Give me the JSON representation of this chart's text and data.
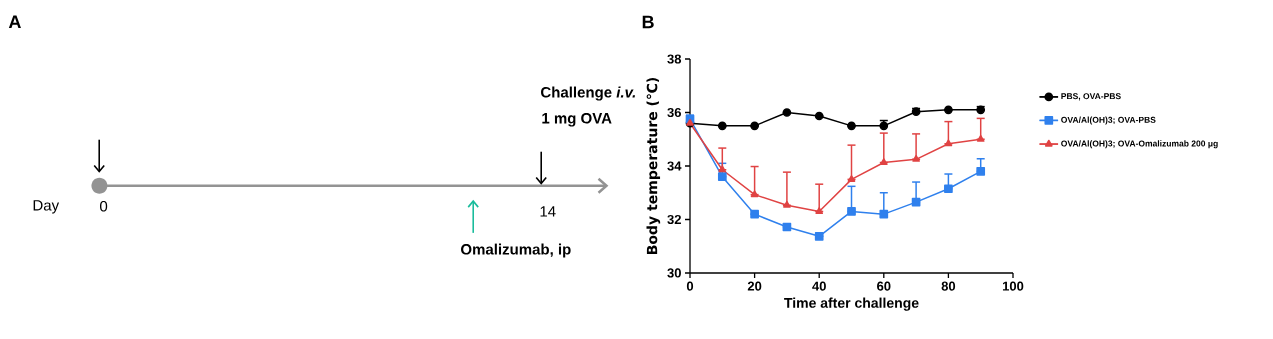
{
  "chart_data": [
    {
      "type": "other",
      "title": "A",
      "annotations": [
        "Day",
        "0",
        "14",
        "Challenge *i.v.*",
        "1 mg OVA",
        "Omalizumab, ip"
      ]
    },
    {
      "type": "line",
      "title": "B",
      "xlabel": "Time after challenge",
      "ylabel": "Body temperature (℃)",
      "x": [
        0,
        10,
        20,
        30,
        40,
        50,
        60,
        70,
        80,
        90
      ],
      "xlim": [
        0,
        100
      ],
      "xticks": [
        0,
        20,
        40,
        60,
        80,
        100
      ],
      "ylim": [
        30,
        38
      ],
      "yticks": [
        30,
        32,
        34,
        36,
        38
      ],
      "legend": "right",
      "grid": false,
      "series": [
        {
          "name": "PBS, OVA-PBS",
          "color": "#000000",
          "marker": "circle",
          "values": [
            35.6,
            35.5,
            35.5,
            36.0,
            35.87,
            35.5,
            35.5,
            36.03,
            36.1,
            36.1
          ],
          "errors": [
            null,
            null,
            null,
            null,
            null,
            null,
            [
              35.5,
              35.7
            ],
            [
              36.03,
              36.15
            ],
            null,
            [
              36.1,
              36.22
            ]
          ]
        },
        {
          "name": "OVA/Al(OH)3; OVA-PBS",
          "color": "#2f80ed",
          "marker": "square",
          "values": [
            35.75,
            33.6,
            32.2,
            31.72,
            31.37,
            32.3,
            32.2,
            32.65,
            33.15,
            33.8
          ],
          "errors": [
            [
              35.75,
              35.9
            ],
            [
              33.6,
              34.1
            ],
            null,
            null,
            null,
            [
              32.3,
              33.24
            ],
            [
              32.2,
              33.0
            ],
            [
              32.65,
              33.4
            ],
            [
              33.15,
              33.7
            ],
            [
              33.8,
              34.27
            ]
          ]
        },
        {
          "name": "OVA/Al(OH)3; OVA-Omalizumab 200 μg",
          "color": "#e04343",
          "marker": "triangle",
          "values": [
            35.6,
            33.86,
            32.93,
            32.53,
            32.3,
            33.5,
            34.13,
            34.25,
            34.83,
            35.0
          ],
          "errors": [
            null,
            [
              33.86,
              34.67
            ],
            [
              32.93,
              33.98
            ],
            [
              32.53,
              33.77
            ],
            [
              32.3,
              33.32
            ],
            [
              33.5,
              34.78
            ],
            [
              34.13,
              35.23
            ],
            [
              34.25,
              35.2
            ],
            [
              34.83,
              35.66
            ],
            [
              35.0,
              35.78
            ]
          ]
        }
      ]
    }
  ]
}
